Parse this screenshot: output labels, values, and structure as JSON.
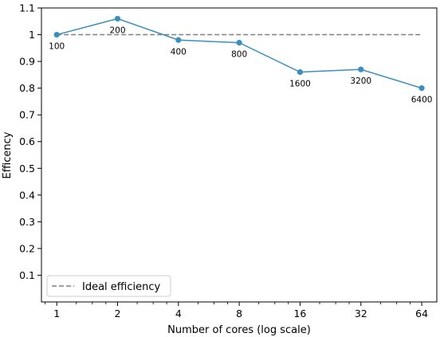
{
  "chart_data": {
    "type": "line",
    "title": "",
    "xlabel": "Number of cores (log scale)",
    "ylabel": "Efficency",
    "xscale": "log2",
    "x": [
      1,
      2,
      4,
      8,
      16,
      32,
      64
    ],
    "xtick_labels": [
      "1",
      "2",
      "4",
      "8",
      "16",
      "32",
      "64"
    ],
    "xlim": [
      0.84,
      76
    ],
    "ylim": [
      0,
      1.1
    ],
    "yticks": [
      0.1,
      0.2,
      0.3,
      0.4,
      0.5,
      0.6,
      0.7,
      0.8,
      0.9,
      1,
      1.1
    ],
    "ytick_labels": [
      "0.1",
      "0.2",
      "0.3",
      "0.4",
      "0.5",
      "0.6",
      "0.7",
      "0.8",
      "0.9",
      "1",
      "1.1"
    ],
    "grid": false,
    "legend_position": "lower-left",
    "series": [
      {
        "values": [
          1.0,
          1.06,
          0.98,
          0.97,
          0.86,
          0.87,
          0.8
        ],
        "point_labels": [
          "100",
          "200",
          "400",
          "800",
          "1600",
          "3200",
          "6400"
        ],
        "color": "#3a8fbe",
        "style": "solid",
        "marker": "circle"
      },
      {
        "name": "Ideal efficiency",
        "values": [
          1,
          1,
          1,
          1,
          1,
          1,
          1
        ],
        "color": "#7f7f7f",
        "style": "dashed"
      }
    ]
  }
}
